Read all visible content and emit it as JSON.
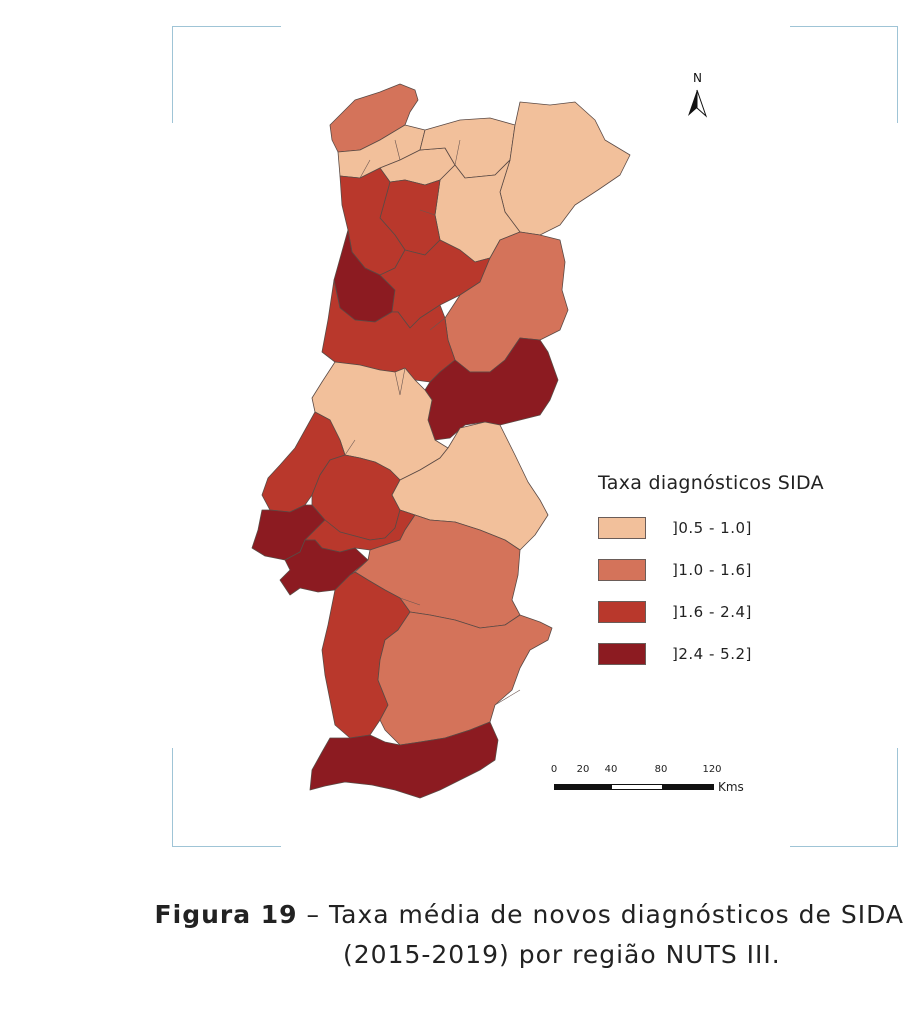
{
  "legend": {
    "title": "Taxa diagnósticos SIDA",
    "classes": [
      {
        "label": "]0.5  -  1.0]",
        "color": "#f2c09b"
      },
      {
        "label": "]1.0  -  1.6]",
        "color": "#d4735a"
      },
      {
        "label": "]1.6  -  2.4]",
        "color": "#b9382c"
      },
      {
        "label": "]2.4  -  5.2]",
        "color": "#8c1b21"
      }
    ]
  },
  "north_arrow": {
    "label": "N"
  },
  "scale_bar": {
    "ticks": [
      "0",
      "20",
      "40",
      "80",
      "120"
    ],
    "unit": "Kms"
  },
  "caption": {
    "figure_label": "Figura 19",
    "line1_text": " – Taxa média de novos diagnósticos de SIDA",
    "line2_text": "(2015-2019) por região NUTS III."
  }
}
